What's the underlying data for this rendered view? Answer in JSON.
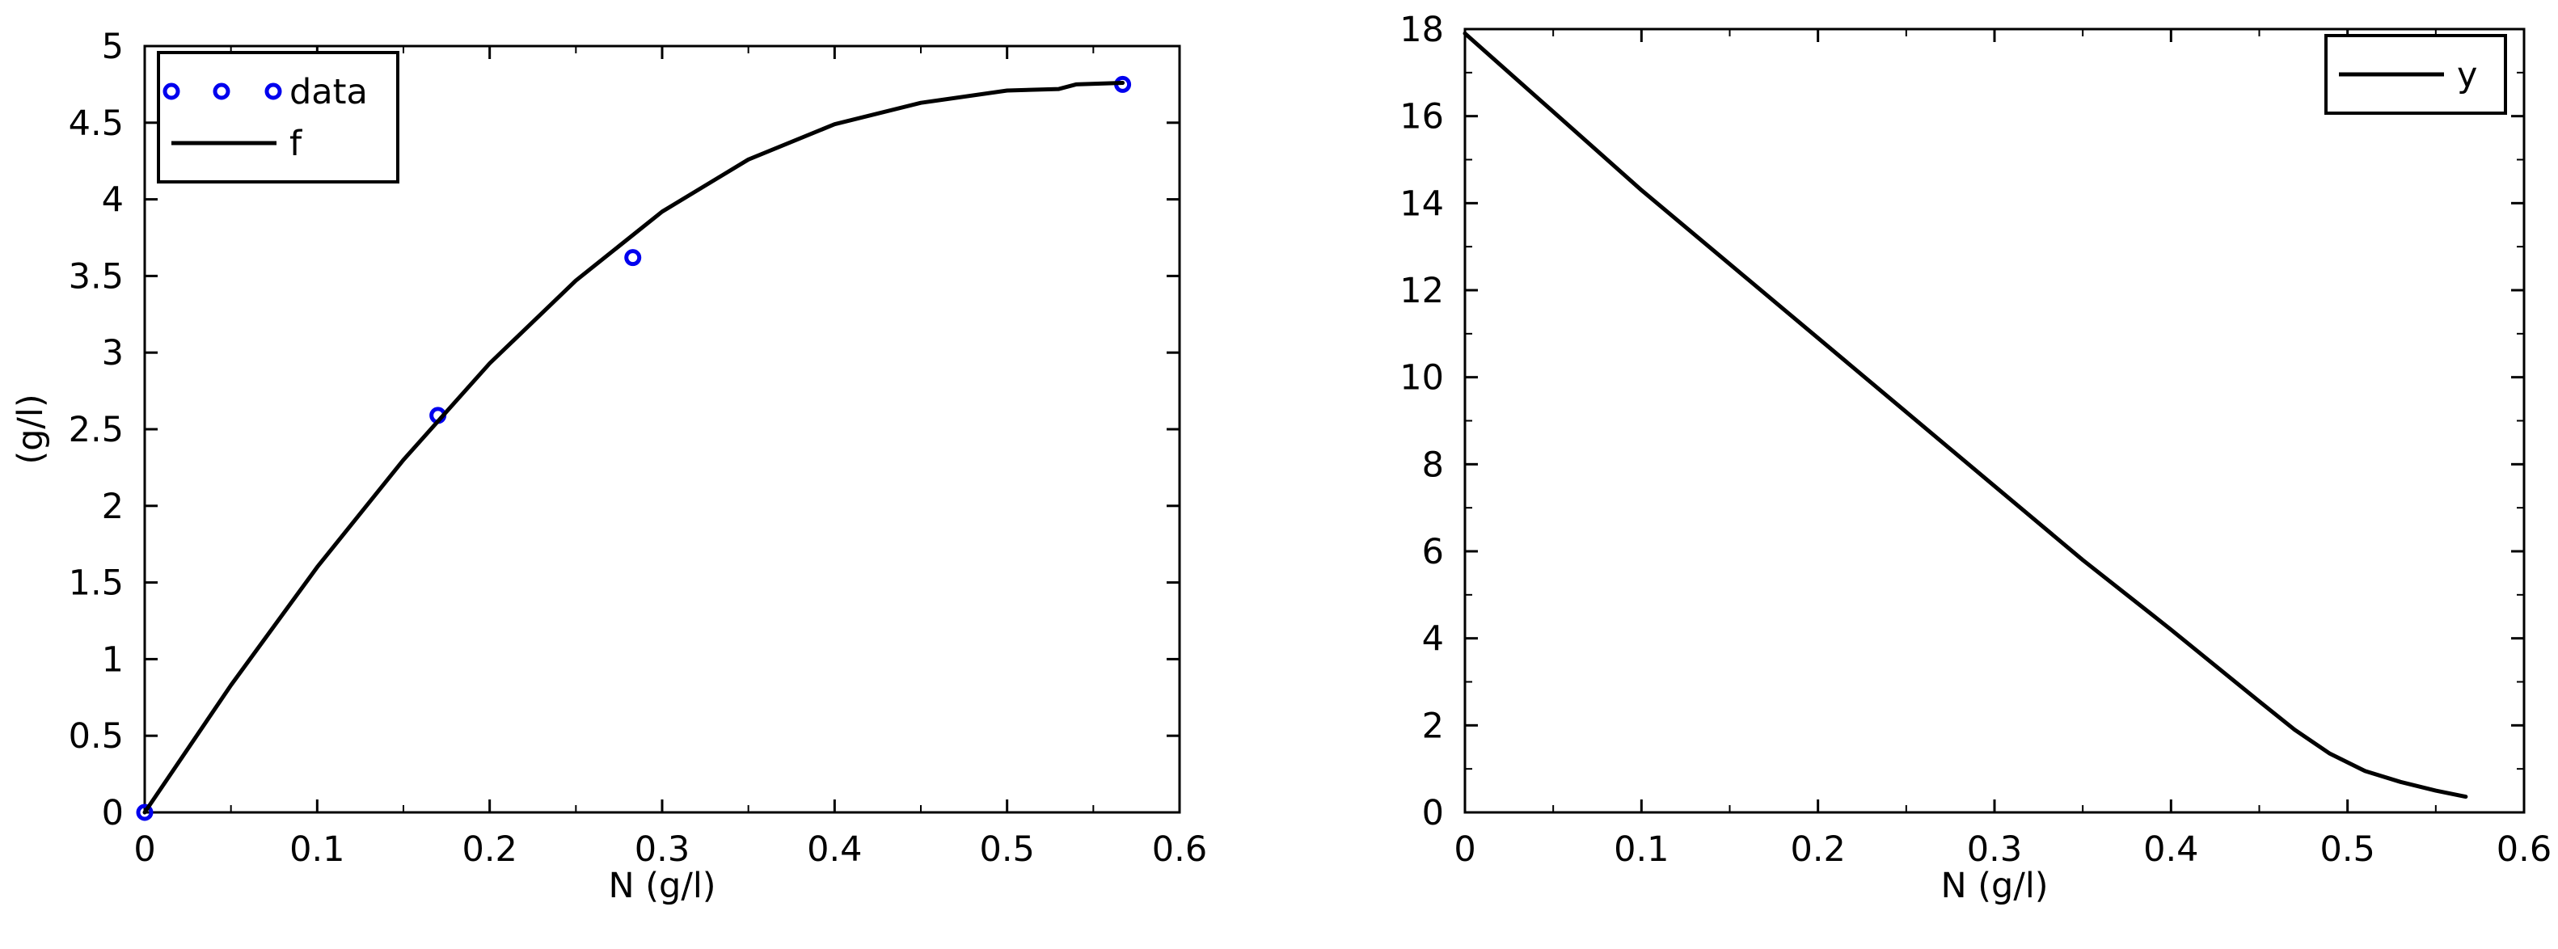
{
  "colors": {
    "background": "#ffffff",
    "axis": "#000000",
    "line": "#000000",
    "marker": "#0000ee"
  },
  "chart_data": [
    {
      "type": "line",
      "xlabel": "N (g/l)",
      "ylabel": "(g/l)",
      "xlim": [
        0,
        0.6
      ],
      "ylim": [
        0,
        5
      ],
      "xticks": [
        "0",
        "0.1",
        "0.2",
        "0.3",
        "0.4",
        "0.5",
        "0.6"
      ],
      "yticks": [
        "0",
        "0.5",
        "1",
        "1.5",
        "2",
        "2.5",
        "3",
        "3.5",
        "4",
        "4.5",
        "5"
      ],
      "legend_position": "top-left",
      "grid": false,
      "series": [
        {
          "name": "data",
          "kind": "markers",
          "marker": "circle",
          "color": "#0000ee",
          "points": [
            [
              0,
              0
            ],
            [
              0.17,
              2.59
            ],
            [
              0.283,
              3.62
            ],
            [
              0.567,
              4.75
            ]
          ]
        },
        {
          "name": "f",
          "kind": "line",
          "color": "#000000",
          "points": [
            [
              0,
              0
            ],
            [
              0.05,
              0.83
            ],
            [
              0.1,
              1.6
            ],
            [
              0.15,
              2.3
            ],
            [
              0.2,
              2.93
            ],
            [
              0.25,
              3.47
            ],
            [
              0.3,
              3.92
            ],
            [
              0.35,
              4.26
            ],
            [
              0.4,
              4.49
            ],
            [
              0.45,
              4.63
            ],
            [
              0.5,
              4.71
            ],
            [
              0.53,
              4.72
            ],
            [
              0.54,
              4.75
            ],
            [
              0.567,
              4.76
            ]
          ]
        }
      ]
    },
    {
      "type": "line",
      "xlabel": "N (g/l)",
      "ylabel": "",
      "xlim": [
        0,
        0.6
      ],
      "ylim": [
        0,
        18
      ],
      "xticks": [
        "0",
        "0.1",
        "0.2",
        "0.3",
        "0.4",
        "0.5",
        "0.6"
      ],
      "yticks": [
        "0",
        "2",
        "4",
        "6",
        "8",
        "10",
        "12",
        "14",
        "16",
        "18"
      ],
      "legend_position": "top-right",
      "grid": false,
      "series": [
        {
          "name": "y",
          "kind": "line",
          "color": "#000000",
          "points": [
            [
              0,
              17.9
            ],
            [
              0.05,
              16.1
            ],
            [
              0.1,
              14.3
            ],
            [
              0.15,
              12.6
            ],
            [
              0.2,
              10.9
            ],
            [
              0.25,
              9.2
            ],
            [
              0.3,
              7.5
            ],
            [
              0.35,
              5.8
            ],
            [
              0.4,
              4.2
            ],
            [
              0.45,
              2.55
            ],
            [
              0.47,
              1.9
            ],
            [
              0.49,
              1.35
            ],
            [
              0.51,
              0.95
            ],
            [
              0.53,
              0.7
            ],
            [
              0.55,
              0.5
            ],
            [
              0.567,
              0.36
            ]
          ]
        }
      ]
    }
  ]
}
